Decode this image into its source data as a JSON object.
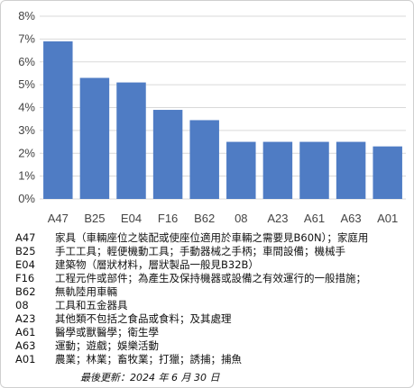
{
  "chart_data": {
    "type": "bar",
    "categories": [
      "A47",
      "B25",
      "E04",
      "F16",
      "B62",
      "08",
      "A23",
      "A61",
      "A63",
      "A01"
    ],
    "values": [
      6.9,
      5.3,
      5.1,
      3.9,
      3.45,
      2.5,
      2.5,
      2.5,
      2.5,
      2.3
    ],
    "ylim": [
      0,
      8
    ],
    "yticks": [
      "0%",
      "1%",
      "2%",
      "3%",
      "4%",
      "5%",
      "6%",
      "7%",
      "8%"
    ],
    "grid": true,
    "bar_color": "#4f7cc4",
    "grid_color": "#d9d9d9"
  },
  "legend": [
    {
      "code": "A47",
      "desc": "家具（車輛座位之裝配或使座位適用於車輛之需要見B60N）；家庭用"
    },
    {
      "code": "B25",
      "desc": "手工工具；輕便機動工具；手動器械之手柄；車間設備；機械手"
    },
    {
      "code": "E04",
      "desc": "建築物（層狀材料，層狀製品一般見B32B）"
    },
    {
      "code": "F16",
      "desc": "工程元件或部件；為產生及保持機器或設備之有效運行的一般措施；"
    },
    {
      "code": "B62",
      "desc": "無軌陸用車輛"
    },
    {
      "code": "08",
      "desc": "工具和五金器具"
    },
    {
      "code": "A23",
      "desc": "其他類不包括之食品或食料；及其處理"
    },
    {
      "code": "A61",
      "desc": "醫學或獸醫學；衛生學"
    },
    {
      "code": "A63",
      "desc": "運動；遊戲；娛樂活動"
    },
    {
      "code": "A01",
      "desc": "農業；林業；畜牧業；打獵；誘捕；捕魚"
    }
  ],
  "footnote": "最後更新：2024 年 6 月 30 日"
}
